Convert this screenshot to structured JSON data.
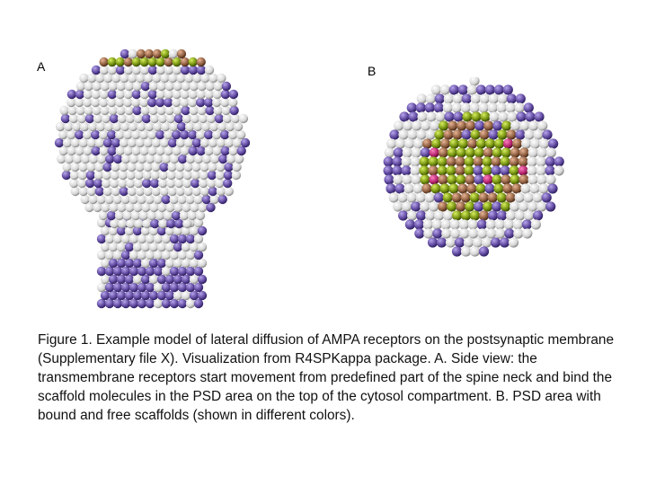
{
  "panels": {
    "a_label": "A",
    "b_label": "B"
  },
  "caption": "Figure 1. Example model of lateral diffusion of AMPA receptors on the postsynaptic membrane (Supplementary file X).  Visualization from R4SPKappa package. A. Side view: the transmembrane receptors start movement from predefined part of the spine neck and bind the scaffold molecules in the PSD area on the top of the cytosol compartment. B. PSD area with bound and free scaffolds (shown in different colors).",
  "colors": {
    "membrane": "#e4e4e4",
    "receptor": "#6a52a8",
    "scaffold_green": "#7c9a10",
    "scaffold_brown": "#9a6a4a",
    "scaffold_magenta": "#b0206a"
  }
}
